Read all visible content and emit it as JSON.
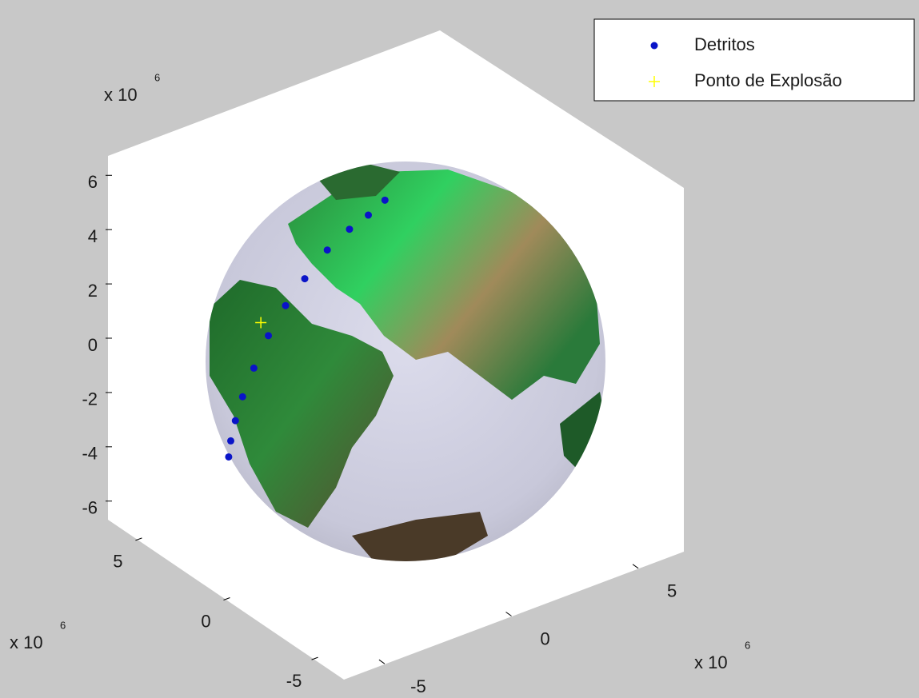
{
  "chart_data": {
    "type": "scatter3d",
    "xlim": [
      -6.7,
      6.7
    ],
    "ylim": [
      -6.7,
      6.7
    ],
    "zlim": [
      -6.7,
      6.7
    ],
    "xticks": [
      -5,
      0,
      5
    ],
    "yticks": [
      -5,
      0,
      5
    ],
    "zticks": [
      -6,
      -4,
      -2,
      0,
      2,
      4,
      6
    ],
    "x_exponent": {
      "base": "x 10",
      "power": "6"
    },
    "y_exponent": {
      "base": "x 10",
      "power": "6"
    },
    "z_exponent": {
      "base": "x 10",
      "power": "6"
    },
    "grid": false,
    "legend": "upper-right",
    "series": [
      {
        "name": "Detritos",
        "color": "#0a14c8",
        "marker": "dot",
        "x": [
          3.44,
          4.1,
          4.76,
          5.36,
          5.9,
          6.3,
          6.49,
          6.51,
          6.34,
          6.03,
          5.68,
          5.27
        ],
        "y": [
          -4.11,
          -3.57,
          -2.93,
          -2.23,
          -1.41,
          -0.56,
          0.25,
          1.02,
          1.79,
          2.45,
          2.95,
          3.32
        ],
        "z": [
          -3.85,
          -3.74,
          -3.51,
          -3.14,
          -2.61,
          -1.89,
          -1.15,
          -0.44,
          0.42,
          1.09,
          1.59,
          2.19
        ]
      },
      {
        "name": "Ponto de Explosão",
        "color": "#ffff00",
        "marker": "plus",
        "x": [
          6.41
        ],
        "y": [
          -0.78
        ],
        "z": [
          -1.38
        ]
      }
    ]
  }
}
